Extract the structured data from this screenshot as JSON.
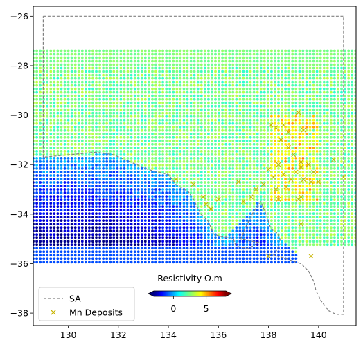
{
  "chart_data": {
    "type": "scatter",
    "title": "",
    "xlabel": "",
    "ylabel": "",
    "xlim": [
      128.6,
      141.5
    ],
    "ylim": [
      -38.5,
      -25.6
    ],
    "xticks": [
      130,
      132,
      134,
      136,
      138,
      140
    ],
    "yticks": [
      -26,
      -28,
      -30,
      -32,
      -34,
      -36,
      -38
    ],
    "x_tick_labels": [
      "130",
      "132",
      "134",
      "136",
      "138",
      "140"
    ],
    "y_tick_labels": [
      "−26",
      "−28",
      "−30",
      "−32",
      "−34",
      "−36",
      "−38"
    ],
    "grid": false,
    "colorbar": {
      "label": "Resistivity Ω.m",
      "ticks": [
        0,
        5
      ],
      "tick_labels": [
        "0",
        "5"
      ],
      "range": [
        -3,
        8
      ],
      "colormap": "jet",
      "extend": "both"
    },
    "legend": {
      "placement": "lower-left",
      "entries": [
        {
          "label": "SA",
          "marker": "dashed-line",
          "color": "#808080"
        },
        {
          "label": "Mn Deposits",
          "marker": "x",
          "color": "#c8b400"
        }
      ]
    },
    "sa_boundary": [
      [
        129.0,
        -26.0
      ],
      [
        141.0,
        -26.0
      ],
      [
        141.0,
        -38.05
      ],
      [
        140.7,
        -38.05
      ],
      [
        140.4,
        -37.9
      ],
      [
        140.1,
        -37.5
      ],
      [
        139.9,
        -37.1
      ],
      [
        139.8,
        -36.7
      ],
      [
        139.6,
        -36.3
      ],
      [
        139.3,
        -36.0
      ],
      [
        139.0,
        -35.9
      ],
      [
        138.7,
        -35.8
      ],
      [
        138.2,
        -35.65
      ],
      [
        138.5,
        -35.2
      ],
      [
        138.4,
        -34.8
      ],
      [
        138.1,
        -34.6
      ],
      [
        137.9,
        -34.0
      ],
      [
        137.7,
        -33.5
      ],
      [
        137.4,
        -33.9
      ],
      [
        137.1,
        -34.5
      ],
      [
        136.9,
        -35.0
      ],
      [
        137.6,
        -35.15
      ],
      [
        137.2,
        -35.4
      ],
      [
        136.7,
        -35.3
      ],
      [
        136.6,
        -35.0
      ],
      [
        136.1,
        -34.9
      ],
      [
        135.8,
        -34.8
      ],
      [
        135.6,
        -34.3
      ],
      [
        135.3,
        -34.0
      ],
      [
        135.0,
        -33.4
      ],
      [
        134.8,
        -33.1
      ],
      [
        134.3,
        -32.8
      ],
      [
        134.0,
        -32.4
      ],
      [
        133.6,
        -32.3
      ],
      [
        133.2,
        -32.2
      ],
      [
        132.5,
        -31.9
      ],
      [
        131.8,
        -31.6
      ],
      [
        131.1,
        -31.5
      ],
      [
        129.0,
        -31.7
      ],
      [
        129.0,
        -26.0
      ]
    ],
    "mn_deposits": [
      [
        138.1,
        -30.4
      ],
      [
        138.3,
        -30.5
      ],
      [
        138.6,
        -30.4
      ],
      [
        138.8,
        -30.7
      ],
      [
        139.2,
        -29.9
      ],
      [
        139.4,
        -30.6
      ],
      [
        138.5,
        -31.0
      ],
      [
        138.8,
        -31.3
      ],
      [
        139.0,
        -31.6
      ],
      [
        139.3,
        -31.9
      ],
      [
        139.6,
        -32.0
      ],
      [
        139.8,
        -32.3
      ],
      [
        139.3,
        -32.1
      ],
      [
        139.1,
        -32.3
      ],
      [
        138.9,
        -32.6
      ],
      [
        138.7,
        -32.9
      ],
      [
        138.6,
        -32.4
      ],
      [
        138.4,
        -32.0
      ],
      [
        138.2,
        -32.5
      ],
      [
        138.3,
        -33.0
      ],
      [
        138.0,
        -32.2
      ],
      [
        139.4,
        -32.6
      ],
      [
        139.7,
        -32.7
      ],
      [
        140.0,
        -32.7
      ],
      [
        140.6,
        -31.8
      ],
      [
        141.0,
        -32.5
      ],
      [
        139.2,
        -33.4
      ],
      [
        139.3,
        -33.3
      ],
      [
        137.8,
        -32.8
      ],
      [
        136.8,
        -32.7
      ],
      [
        137.0,
        -33.5
      ],
      [
        137.3,
        -33.3
      ],
      [
        137.5,
        -33.0
      ],
      [
        136.0,
        -33.4
      ],
      [
        135.4,
        -33.3
      ],
      [
        135.5,
        -33.6
      ],
      [
        135.0,
        -32.8
      ],
      [
        134.3,
        -32.6
      ],
      [
        138.4,
        -33.4
      ],
      [
        139.3,
        -34.4
      ],
      [
        138.0,
        -35.7
      ],
      [
        139.7,
        -35.7
      ],
      [
        135.7,
        -33.8
      ]
    ]
  }
}
